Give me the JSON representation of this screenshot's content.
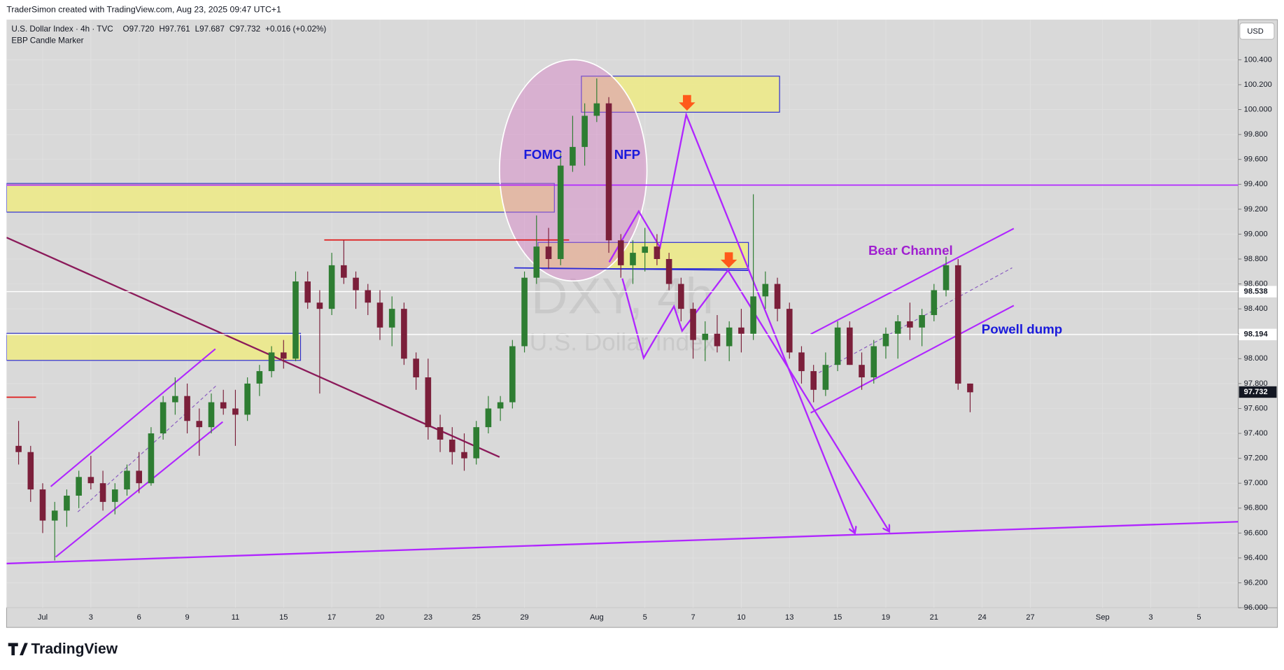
{
  "header": {
    "credit": "TraderSimon created with TradingView.com, Aug 23, 2025 09:47 UTC+1",
    "symbol": "U.S. Dollar Index · 4h · TVC",
    "ohlc": [
      "O97.720",
      "H97.761",
      "L97.687",
      "C97.732",
      "+0.016 (+0.02%)"
    ],
    "indicator": "EBP Candle Marker",
    "currency": "USD",
    "watermark_symbol": "DXY, 4h",
    "watermark_name": "U.S. Dollar Index"
  },
  "footer": {
    "logo": "TradingView"
  },
  "chart_data": {
    "type": "candlestick",
    "up_color": "#2e7d32",
    "down_color": "#7b1f3a",
    "x": [
      -2,
      -1,
      0,
      1,
      2,
      3,
      4,
      5,
      6,
      7,
      8,
      9,
      10,
      11,
      12,
      13,
      14,
      15,
      16,
      17,
      18,
      19,
      20,
      21,
      22,
      23,
      24,
      25,
      26,
      27,
      28,
      29,
      30,
      31,
      32,
      33,
      34,
      35,
      36,
      37,
      38,
      39,
      40,
      41,
      42,
      43,
      44,
      45,
      46,
      47,
      48,
      49,
      50,
      51,
      52,
      53,
      54,
      55,
      56,
      57,
      58,
      59,
      60,
      61,
      62,
      63,
      64,
      65,
      66,
      67,
      68,
      69,
      70,
      71,
      72,
      73,
      74,
      75,
      76,
      77
    ],
    "open": [
      97.3,
      97.25,
      96.95,
      96.7,
      96.78,
      96.9,
      97.05,
      97.0,
      96.85,
      96.95,
      97.1,
      97.0,
      97.4,
      97.65,
      97.7,
      97.5,
      97.45,
      97.65,
      97.6,
      97.55,
      97.8,
      97.9,
      98.05,
      98.0,
      98.62,
      98.45,
      98.4,
      98.75,
      98.65,
      98.55,
      98.45,
      98.25,
      98.4,
      98.0,
      97.85,
      97.45,
      97.35,
      97.25,
      97.2,
      97.45,
      97.6,
      97.65,
      98.1,
      98.65,
      98.9,
      98.8,
      99.55,
      99.7,
      99.95,
      100.05,
      98.95,
      98.75,
      98.85,
      98.9,
      98.8,
      98.6,
      98.4,
      98.15,
      98.2,
      98.1,
      98.25,
      98.2,
      98.5,
      98.6,
      98.4,
      98.05,
      97.9,
      97.75,
      97.95,
      98.25,
      97.95,
      97.85,
      98.1,
      98.2,
      98.3,
      98.25,
      98.35,
      98.55,
      98.75,
      97.8
    ],
    "high": [
      97.5,
      97.3,
      97.0,
      96.85,
      96.95,
      97.1,
      97.22,
      97.1,
      97.0,
      97.15,
      97.25,
      97.45,
      97.7,
      97.85,
      97.8,
      97.6,
      97.72,
      97.75,
      97.75,
      97.85,
      97.95,
      98.1,
      98.15,
      98.7,
      98.7,
      98.55,
      98.85,
      98.95,
      98.7,
      98.6,
      98.55,
      98.5,
      98.45,
      98.05,
      98.0,
      97.55,
      97.45,
      97.4,
      97.5,
      97.7,
      97.7,
      98.15,
      98.7,
      99.15,
      99.05,
      99.65,
      99.95,
      100.05,
      100.25,
      100.1,
      99.0,
      98.95,
      99.05,
      99.0,
      98.85,
      98.65,
      98.45,
      98.3,
      98.35,
      98.3,
      98.4,
      99.32,
      98.7,
      98.65,
      98.45,
      98.1,
      97.95,
      98.05,
      98.3,
      98.3,
      98.05,
      98.15,
      98.25,
      98.35,
      98.45,
      98.4,
      98.6,
      98.82,
      98.8,
      97.8
    ],
    "low": [
      97.15,
      96.85,
      96.6,
      96.38,
      96.65,
      96.8,
      96.95,
      96.78,
      96.75,
      96.9,
      96.92,
      96.98,
      97.35,
      97.55,
      97.4,
      97.22,
      97.4,
      97.55,
      97.3,
      97.5,
      97.7,
      97.85,
      97.92,
      97.98,
      98.4,
      97.72,
      98.35,
      98.6,
      98.4,
      98.35,
      98.15,
      98.1,
      97.95,
      97.75,
      97.35,
      97.25,
      97.15,
      97.1,
      97.15,
      97.4,
      97.5,
      97.6,
      98.05,
      98.6,
      98.72,
      98.75,
      99.5,
      99.55,
      99.9,
      98.85,
      98.65,
      98.6,
      98.7,
      98.75,
      98.55,
      98.3,
      98.0,
      97.98,
      98.05,
      97.98,
      98.05,
      98.15,
      98.4,
      98.3,
      98.0,
      97.8,
      97.65,
      97.7,
      97.9,
      97.95,
      97.75,
      97.8,
      98.0,
      98.0,
      98.15,
      98.1,
      98.3,
      98.5,
      97.75,
      97.57
    ],
    "close": [
      97.25,
      96.95,
      96.7,
      96.78,
      96.9,
      97.05,
      97.0,
      96.85,
      96.95,
      97.1,
      97.0,
      97.4,
      97.65,
      97.7,
      97.5,
      97.45,
      97.65,
      97.6,
      97.55,
      97.8,
      97.9,
      98.05,
      98.0,
      98.62,
      98.45,
      98.4,
      98.75,
      98.65,
      98.55,
      98.45,
      98.25,
      98.4,
      98.0,
      97.85,
      97.45,
      97.35,
      97.25,
      97.2,
      97.45,
      97.6,
      97.65,
      98.1,
      98.65,
      98.9,
      98.8,
      99.55,
      99.7,
      99.95,
      100.05,
      98.95,
      98.75,
      98.85,
      98.9,
      98.8,
      98.6,
      98.4,
      98.15,
      98.2,
      98.1,
      98.25,
      98.2,
      98.5,
      98.6,
      98.4,
      98.05,
      97.9,
      97.75,
      97.95,
      98.25,
      97.95,
      97.85,
      98.1,
      98.2,
      98.3,
      98.25,
      98.35,
      98.55,
      98.75,
      97.8,
      97.73
    ],
    "xlim": [
      -3,
      99.25
    ],
    "xticks": [
      {
        "value": 0,
        "label": "Jul"
      },
      {
        "value": 4,
        "label": "3"
      },
      {
        "value": 8,
        "label": "6"
      },
      {
        "value": 12,
        "label": "9"
      },
      {
        "value": 16,
        "label": "11"
      },
      {
        "value": 20,
        "label": "15"
      },
      {
        "value": 24,
        "label": "17"
      },
      {
        "value": 28,
        "label": "20"
      },
      {
        "value": 32,
        "label": "23"
      },
      {
        "value": 36,
        "label": "25"
      },
      {
        "value": 40,
        "label": "29"
      },
      {
        "value": 46,
        "label": "Aug"
      },
      {
        "value": 50,
        "label": "5"
      },
      {
        "value": 54,
        "label": "7"
      },
      {
        "value": 58,
        "label": "10"
      },
      {
        "value": 62,
        "label": "13"
      },
      {
        "value": 66,
        "label": "15"
      },
      {
        "value": 70,
        "label": "19"
      },
      {
        "value": 74,
        "label": "21"
      },
      {
        "value": 78,
        "label": "24"
      },
      {
        "value": 82,
        "label": "27"
      },
      {
        "value": 88,
        "label": "Sep"
      },
      {
        "value": 92,
        "label": "3"
      },
      {
        "value": 96,
        "label": "5"
      }
    ],
    "ylim": [
      96.0,
      100.722
    ],
    "yticks": [
      {
        "value": 96.0,
        "label": "96.000"
      },
      {
        "value": 96.2,
        "label": "96.200"
      },
      {
        "value": 96.4,
        "label": "96.400"
      },
      {
        "value": 96.6,
        "label": "96.600"
      },
      {
        "value": 96.8,
        "label": "96.800"
      },
      {
        "value": 97.0,
        "label": "97.000"
      },
      {
        "value": 97.2,
        "label": "97.200"
      },
      {
        "value": 97.4,
        "label": "97.400"
      },
      {
        "value": 97.6,
        "label": "97.600"
      },
      {
        "value": 97.8,
        "label": "97.800"
      },
      {
        "value": 98.0,
        "label": "98.000"
      },
      {
        "value": 98.2,
        "label": "98.200"
      },
      {
        "value": 98.4,
        "label": "98.400"
      },
      {
        "value": 98.6,
        "label": "98.600"
      },
      {
        "value": 98.8,
        "label": "98.800"
      },
      {
        "value": 99.0,
        "label": "99.000"
      },
      {
        "value": 99.2,
        "label": "99.200"
      },
      {
        "value": 99.4,
        "label": "99.400"
      },
      {
        "value": 99.6,
        "label": "99.600"
      },
      {
        "value": 99.8,
        "label": "99.800"
      },
      {
        "value": 100.0,
        "label": "100.000"
      },
      {
        "value": 100.2,
        "label": "100.200"
      },
      {
        "value": 100.4,
        "label": "100.400"
      }
    ],
    "price_lines": [
      {
        "value": 98.538,
        "label": "98.538"
      },
      {
        "value": 98.194,
        "label": "98.194"
      }
    ],
    "last_price": {
      "value": 97.732,
      "label": "97.732"
    },
    "annotations": [
      "FOMC",
      "NFP",
      "Bear Channel",
      "Powell dump"
    ]
  }
}
